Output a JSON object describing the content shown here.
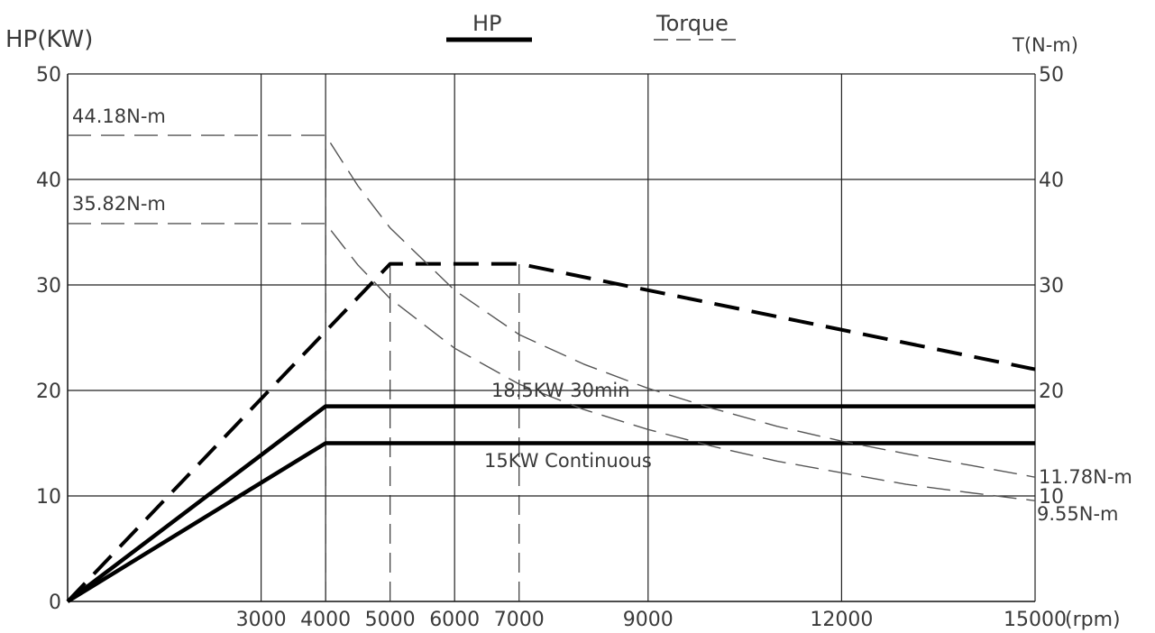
{
  "chart_data": {
    "type": "line",
    "y_left_label": "HP(KW)",
    "y_right_label": "T(N-m)",
    "x_unit_label": "(rpm)",
    "xlim": [
      0,
      15000
    ],
    "ylim": [
      0,
      50
    ],
    "grid": true,
    "legend_position": "top",
    "legend": [
      {
        "name": "HP",
        "style": "solid-thick"
      },
      {
        "name": "Torque",
        "style": "dashed"
      }
    ],
    "x_ticks": [
      {
        "value": 3000,
        "label": "3000"
      },
      {
        "value": 4000,
        "label": "4000"
      },
      {
        "value": 5000,
        "label": "5000"
      },
      {
        "value": 6000,
        "label": "6000"
      },
      {
        "value": 7000,
        "label": "7000"
      },
      {
        "value": 9000,
        "label": "9000"
      },
      {
        "value": 12000,
        "label": "12000"
      },
      {
        "value": 15000,
        "label": "15000"
      }
    ],
    "y_ticks_left": [
      0,
      10,
      20,
      30,
      40,
      50
    ],
    "y_ticks_right": [
      10,
      20,
      30,
      40,
      50
    ],
    "x_gridlines": [
      3000,
      4000,
      6000,
      9000,
      12000,
      15000
    ],
    "y_gridlines": [
      10,
      20,
      30,
      40,
      50
    ],
    "dashed_verticals": [
      {
        "x": 4000,
        "y_top": 44.18
      },
      {
        "x": 5000,
        "y_top": 32
      },
      {
        "x": 7000,
        "y_top": 32
      }
    ],
    "series": [
      {
        "name": "18.5KW 30min",
        "kind": "power",
        "style": "solid-thick",
        "x": [
          0,
          4000,
          15000
        ],
        "y": [
          0,
          18.5,
          18.5
        ]
      },
      {
        "name": "15KW Continuous",
        "kind": "power",
        "style": "solid-thick",
        "x": [
          0,
          4000,
          15000
        ],
        "y": [
          0,
          15,
          15
        ]
      },
      {
        "kind": "power",
        "style": "dashed-thick",
        "x": [
          0,
          4000,
          5000,
          7000,
          15000
        ],
        "y": [
          0,
          25.6,
          32,
          32,
          22
        ]
      },
      {
        "name": "44.18N-m",
        "kind": "torque",
        "style": "dashed",
        "x": [
          0,
          4000,
          4500,
          5000,
          6000,
          7000,
          8000,
          9000,
          10000,
          11000,
          12000,
          13000,
          14000,
          15000
        ],
        "y": [
          44.18,
          44.18,
          39.4,
          35.4,
          29.5,
          25.3,
          22.5,
          20.2,
          18.3,
          16.6,
          15.2,
          14.0,
          12.9,
          11.78
        ]
      },
      {
        "name": "35.82N-m",
        "kind": "torque",
        "style": "dashed",
        "x": [
          0,
          4000,
          4500,
          5000,
          6000,
          7000,
          8000,
          9000,
          10000,
          11000,
          12000,
          13000,
          14000,
          15000
        ],
        "y": [
          35.82,
          35.82,
          31.9,
          28.7,
          24.0,
          20.6,
          18.2,
          16.3,
          14.7,
          13.3,
          12.2,
          11.1,
          10.3,
          9.55
        ]
      }
    ],
    "annotations": [
      {
        "text": "44.18N-m"
      },
      {
        "text": "35.82N-m"
      },
      {
        "text": "18.5KW 30min"
      },
      {
        "text": "15KW Continuous"
      },
      {
        "text": "11.78N-m"
      },
      {
        "text": "9.55N-m"
      }
    ]
  }
}
